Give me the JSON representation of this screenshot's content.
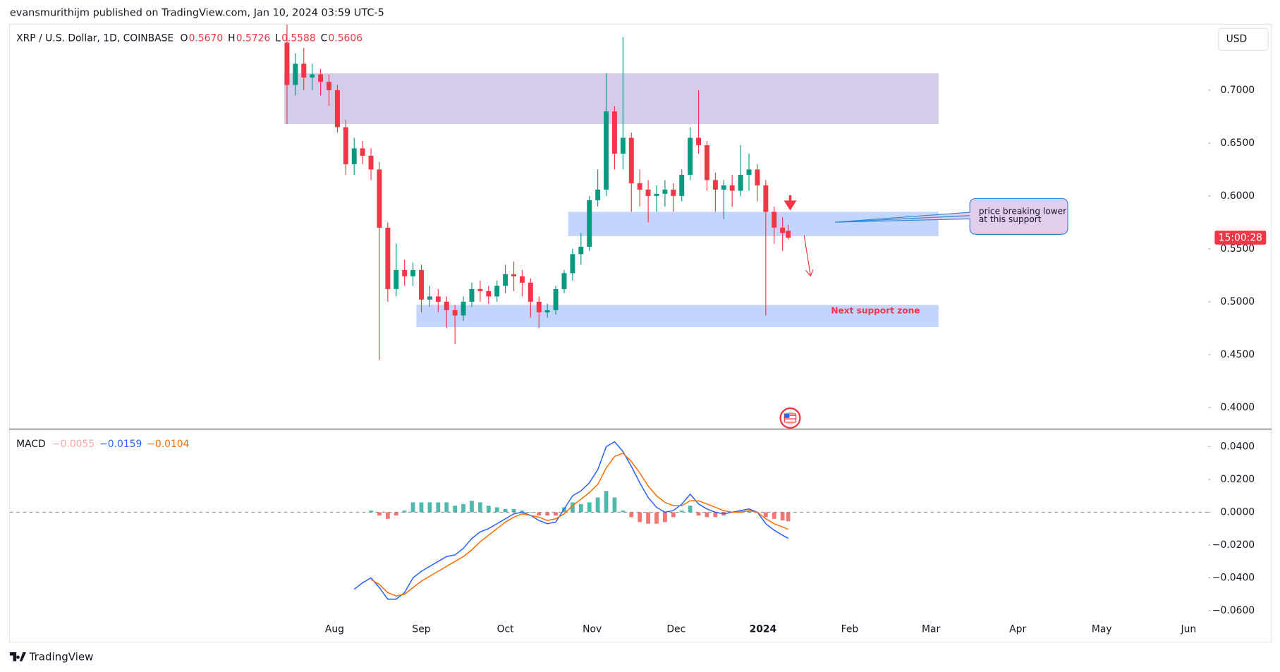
{
  "header": {
    "byline": "evansmurithijm published on TradingView.com, Jan 10, 2024 03:59 UTC-5"
  },
  "footer": {
    "brand": "TradingView"
  },
  "chart_data": [
    {
      "type": "candlestick",
      "title": "XRP / U.S. Dollar, 1D, COINBASE",
      "legend": {
        "names": [
          "O",
          "H",
          "L",
          "C"
        ],
        "values": [
          0.567,
          0.5726,
          0.5588,
          0.5606
        ],
        "value_labels": [
          "0.5670",
          "0.5726",
          "0.5588",
          "0.5606"
        ],
        "color": "#f23645"
      },
      "currency": "USD",
      "countdown": "15:00:28",
      "up_color": "#089981",
      "down_color": "#f23645",
      "x": [
        -17,
        -14,
        -11,
        -8,
        -5,
        -2,
        1,
        4,
        7,
        10,
        13,
        16,
        19,
        22,
        25,
        28,
        31,
        34,
        37,
        40,
        43,
        46,
        49,
        52,
        55,
        58,
        61,
        64,
        67,
        70,
        73,
        76,
        79,
        82,
        85,
        88,
        91,
        94,
        97,
        100,
        103,
        106,
        109,
        112,
        115,
        118,
        121,
        124,
        127,
        130,
        133,
        136,
        139,
        142,
        145,
        148,
        151,
        154,
        157,
        160,
        162
      ],
      "open": [
        0.745,
        0.705,
        0.725,
        0.712,
        0.715,
        0.708,
        0.7,
        0.665,
        0.63,
        0.645,
        0.638,
        0.625,
        0.57,
        0.512,
        0.53,
        0.524,
        0.53,
        0.502,
        0.505,
        0.5,
        0.492,
        0.487,
        0.5,
        0.512,
        0.51,
        0.505,
        0.515,
        0.526,
        0.524,
        0.518,
        0.5,
        0.49,
        0.492,
        0.512,
        0.527,
        0.545,
        0.552,
        0.596,
        0.606,
        0.68,
        0.64,
        0.655,
        0.612,
        0.606,
        0.6,
        0.602,
        0.606,
        0.6,
        0.62,
        0.655,
        0.648,
        0.615,
        0.606,
        0.61,
        0.605,
        0.62,
        0.625,
        0.61,
        0.585,
        0.57,
        0.567
      ],
      "high": [
        0.762,
        0.735,
        0.74,
        0.725,
        0.72,
        0.715,
        0.705,
        0.672,
        0.655,
        0.652,
        0.645,
        0.632,
        0.575,
        0.555,
        0.54,
        0.537,
        0.535,
        0.515,
        0.512,
        0.505,
        0.497,
        0.505,
        0.518,
        0.52,
        0.515,
        0.52,
        0.535,
        0.538,
        0.53,
        0.522,
        0.505,
        0.498,
        0.515,
        0.53,
        0.55,
        0.565,
        0.6,
        0.625,
        0.716,
        0.685,
        0.75,
        0.66,
        0.625,
        0.615,
        0.61,
        0.615,
        0.612,
        0.625,
        0.665,
        0.7,
        0.652,
        0.622,
        0.615,
        0.62,
        0.648,
        0.64,
        0.63,
        0.615,
        0.59,
        0.58,
        0.5726
      ],
      "low": [
        0.668,
        0.695,
        0.7,
        0.7,
        0.695,
        0.685,
        0.66,
        0.62,
        0.62,
        0.63,
        0.615,
        0.445,
        0.5,
        0.505,
        0.515,
        0.515,
        0.49,
        0.495,
        0.49,
        0.475,
        0.46,
        0.482,
        0.495,
        0.5,
        0.498,
        0.5,
        0.508,
        0.51,
        0.505,
        0.485,
        0.475,
        0.485,
        0.488,
        0.508,
        0.52,
        0.535,
        0.548,
        0.59,
        0.6,
        0.625,
        0.625,
        0.585,
        0.59,
        0.575,
        0.585,
        0.59,
        0.585,
        0.595,
        0.615,
        0.64,
        0.605,
        0.585,
        0.578,
        0.59,
        0.6,
        0.605,
        0.595,
        0.487,
        0.555,
        0.548,
        0.5588
      ],
      "close": [
        0.705,
        0.725,
        0.712,
        0.715,
        0.708,
        0.7,
        0.665,
        0.63,
        0.645,
        0.638,
        0.625,
        0.57,
        0.512,
        0.53,
        0.524,
        0.53,
        0.502,
        0.505,
        0.5,
        0.492,
        0.487,
        0.5,
        0.512,
        0.51,
        0.505,
        0.515,
        0.526,
        0.524,
        0.518,
        0.5,
        0.49,
        0.492,
        0.512,
        0.527,
        0.545,
        0.552,
        0.596,
        0.606,
        0.68,
        0.64,
        0.655,
        0.612,
        0.606,
        0.6,
        0.602,
        0.606,
        0.6,
        0.62,
        0.655,
        0.648,
        0.615,
        0.606,
        0.61,
        0.605,
        0.62,
        0.625,
        0.61,
        0.585,
        0.57,
        0.565,
        0.5606
      ],
      "xlim": [
        -116,
        312
      ],
      "ylim": [
        0.38,
        0.762
      ],
      "yticks": [
        {
          "value": 0.4,
          "label": "0.4000"
        },
        {
          "value": 0.45,
          "label": "0.4500"
        },
        {
          "value": 0.5,
          "label": "0.5000"
        },
        {
          "value": 0.55,
          "label": "0.5500"
        },
        {
          "value": 0.6,
          "label": "0.6000"
        },
        {
          "value": 0.65,
          "label": "0.6500"
        },
        {
          "value": 0.7,
          "label": "0.7000"
        }
      ],
      "grid": false,
      "zones": [
        {
          "x": [
            -18,
            215.7
          ],
          "y": [
            0.668,
            0.716
          ],
          "color": "rgba(149,117,205,0.38)"
        },
        {
          "x": [
            83.4,
            215.7
          ],
          "y": [
            0.562,
            0.585
          ],
          "color": "rgba(100,145,250,0.38)"
        },
        {
          "x": [
            29.2,
            215.7
          ],
          "y": [
            0.476,
            0.497
          ],
          "color": "rgba(100,145,250,0.38)"
        }
      ],
      "annotations": [
        {
          "text": [
            "price breaking lower",
            "at this support"
          ]
        },
        {
          "text": "Next support zone",
          "color": "#f23645"
        }
      ]
    },
    {
      "type": "macd",
      "legend": {
        "title": "MACD",
        "values": [
          -0.0055,
          -0.0159,
          -0.0104
        ],
        "value_labels": [
          "−0.0055",
          "−0.0159",
          "−0.0104"
        ],
        "colors": [
          "#f7a9a7",
          "#2962ff",
          "#ff6d00"
        ]
      },
      "x": [
        -17,
        -14,
        -11,
        -8,
        -5,
        -2,
        1,
        4,
        7,
        10,
        13,
        16,
        19,
        22,
        25,
        28,
        31,
        34,
        37,
        40,
        43,
        46,
        49,
        52,
        55,
        58,
        61,
        64,
        67,
        70,
        73,
        76,
        79,
        82,
        85,
        88,
        91,
        94,
        97,
        100,
        103,
        106,
        109,
        112,
        115,
        118,
        121,
        124,
        127,
        130,
        133,
        136,
        139,
        142,
        145,
        148,
        151,
        154,
        157,
        160,
        162
      ],
      "histogram": {
        "positive_color": "#26a69a",
        "negative_color": "#ef5350",
        "values": [
          null,
          null,
          null,
          null,
          null,
          null,
          null,
          null,
          null,
          null,
          0.001,
          -0.002,
          -0.004,
          -0.002,
          0.001,
          0.006,
          0.006,
          0.006,
          0.006,
          0.006,
          0.004,
          0.005,
          0.007,
          0.006,
          0.004,
          0.003,
          0.002,
          0.002,
          0.001,
          0.0,
          -0.002,
          -0.002,
          -0.002,
          0.003,
          0.006,
          0.005,
          0.006,
          0.009,
          0.013,
          0.009,
          0.001,
          -0.003,
          -0.006,
          -0.007,
          -0.007,
          -0.006,
          -0.003,
          0.001,
          0.004,
          -0.002,
          -0.003,
          -0.003,
          -0.002,
          0.0,
          0.001,
          0.001,
          0.0,
          -0.003,
          -0.004,
          -0.005,
          -0.0055
        ]
      },
      "series": [
        {
          "color": "#2962ff",
          "values": [
            null,
            null,
            null,
            null,
            null,
            null,
            null,
            null,
            -0.047,
            -0.043,
            -0.04,
            -0.046,
            -0.053,
            -0.053,
            -0.049,
            -0.04,
            -0.036,
            -0.033,
            -0.03,
            -0.027,
            -0.026,
            -0.022,
            -0.016,
            -0.012,
            -0.01,
            -0.007,
            -0.004,
            -0.001,
            0.0,
            -0.002,
            -0.005,
            -0.007,
            -0.006,
            0.002,
            0.01,
            0.013,
            0.018,
            0.026,
            0.04,
            0.043,
            0.037,
            0.028,
            0.018,
            0.009,
            0.003,
            0.0,
            0.001,
            0.005,
            0.011,
            0.005,
            0.002,
            0.0,
            -0.001,
            0.0,
            0.001,
            0.002,
            0.0,
            -0.007,
            -0.011,
            -0.014,
            -0.0159
          ]
        },
        {
          "color": "#ff6d00",
          "values": [
            null,
            null,
            null,
            null,
            null,
            null,
            null,
            null,
            null,
            null,
            -0.041,
            -0.044,
            -0.049,
            -0.051,
            -0.05,
            -0.046,
            -0.042,
            -0.039,
            -0.036,
            -0.033,
            -0.03,
            -0.027,
            -0.023,
            -0.018,
            -0.014,
            -0.01,
            -0.006,
            -0.003,
            -0.001,
            -0.002,
            -0.003,
            -0.005,
            -0.004,
            -0.001,
            0.004,
            0.008,
            0.012,
            0.017,
            0.027,
            0.034,
            0.036,
            0.031,
            0.024,
            0.016,
            0.01,
            0.006,
            0.004,
            0.004,
            0.007,
            0.007,
            0.005,
            0.003,
            0.001,
            0.0,
            0.0,
            0.001,
            0.0,
            -0.004,
            -0.007,
            -0.009,
            -0.0104
          ]
        }
      ],
      "xlim": [
        -116,
        312
      ],
      "ylim": [
        -0.066,
        0.05
      ],
      "yticks": [
        {
          "value": -0.06,
          "label": "−0.0600"
        },
        {
          "value": -0.04,
          "label": "−0.0400"
        },
        {
          "value": -0.02,
          "label": "−0.0200"
        },
        {
          "value": 0,
          "label": "0.0000"
        },
        {
          "value": 0.02,
          "label": "0.0200"
        },
        {
          "value": 0.04,
          "label": "0.0400"
        }
      ],
      "zero_line": true,
      "xticks": [
        {
          "value": 0,
          "label": "Aug"
        },
        {
          "value": 31,
          "label": "Sep"
        },
        {
          "value": 61,
          "label": "Oct"
        },
        {
          "value": 92,
          "label": "Nov"
        },
        {
          "value": 122,
          "label": "Dec"
        },
        {
          "value": 153,
          "label": "2024"
        },
        {
          "value": 184,
          "label": "Feb"
        },
        {
          "value": 213,
          "label": "Mar"
        },
        {
          "value": 244,
          "label": "Apr"
        },
        {
          "value": 274,
          "label": "May"
        },
        {
          "value": 305,
          "label": "Jun"
        }
      ],
      "bold_xticks": [
        5
      ]
    }
  ]
}
